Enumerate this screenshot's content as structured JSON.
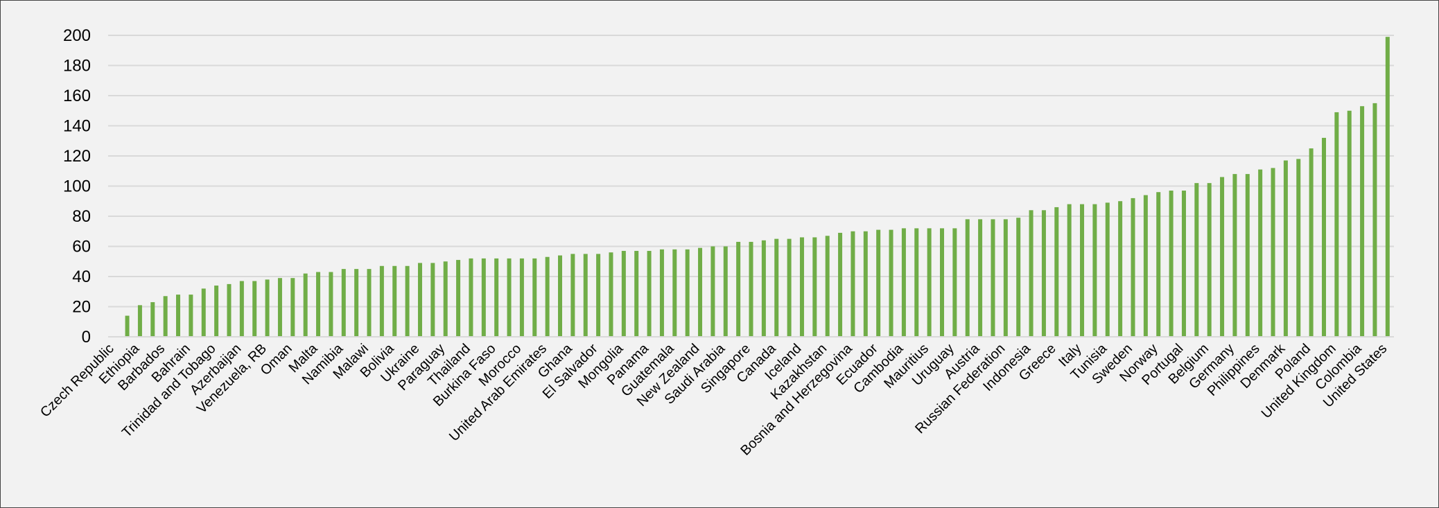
{
  "chart_data": {
    "type": "bar",
    "title": "",
    "xlabel": "",
    "ylabel": "",
    "ylim": [
      0,
      200
    ],
    "yticks": [
      0,
      20,
      40,
      60,
      80,
      100,
      120,
      140,
      160,
      180,
      200
    ],
    "grid": true,
    "bar_color": "#70ad47",
    "gridline_color": "#d9d9d9",
    "categories": [
      "Czech Republic",
      "",
      "Ethiopia",
      "",
      "Barbados",
      "",
      "Bahrain",
      "",
      "Trinidad and Tobago",
      "",
      "Azerbaijan",
      "",
      "Venezuela, RB",
      "",
      "Oman",
      "",
      "Malta",
      "",
      "Namibia",
      "",
      "Malawi",
      "",
      "Bolivia",
      "",
      "Ukraine",
      "",
      "Paraguay",
      "",
      "Thailand",
      "",
      "Burkina Faso",
      "",
      "Morocco",
      "",
      "United Arab Emirates",
      "",
      "Ghana",
      "",
      "El Salvador",
      "",
      "Mongolia",
      "",
      "Panama",
      "",
      "Guatemala",
      "",
      "New Zealand",
      "",
      "Saudi Arabia",
      "",
      "Singapore",
      "",
      "Canada",
      "",
      "Iceland",
      "",
      "Kazakhstan",
      "",
      "Bosnia and Herzegovina",
      "",
      "Ecuador",
      "",
      "Cambodia",
      "",
      "Mauritius",
      "",
      "Uruguay",
      "",
      "Austria",
      "",
      "Russian Federation",
      "",
      "Indonesia",
      "",
      "Greece",
      "",
      "Italy",
      "",
      "Tunisia",
      "",
      "Sweden",
      "",
      "Norway",
      "",
      "Portugal",
      "",
      "Belgium",
      "",
      "Germany",
      "",
      "Philippines",
      "",
      "Denmark",
      "",
      "Poland",
      "",
      "United Kingdom",
      "",
      "Colombia",
      "",
      "United States"
    ],
    "values": [
      0,
      14,
      21,
      23,
      27,
      28,
      28,
      32,
      34,
      35,
      37,
      37,
      38,
      39,
      39,
      42,
      43,
      43,
      45,
      45,
      45,
      47,
      47,
      47,
      49,
      49,
      50,
      51,
      52,
      52,
      52,
      52,
      52,
      52,
      53,
      54,
      55,
      55,
      55,
      56,
      57,
      57,
      57,
      58,
      58,
      58,
      59,
      60,
      60,
      63,
      63,
      64,
      65,
      65,
      66,
      66,
      67,
      69,
      70,
      70,
      71,
      71,
      72,
      72,
      72,
      72,
      72,
      78,
      78,
      78,
      78,
      79,
      84,
      84,
      86,
      88,
      88,
      88,
      89,
      90,
      92,
      94,
      96,
      97,
      97,
      102,
      102,
      106,
      108,
      108,
      111,
      112,
      117,
      118,
      125,
      132,
      149,
      150,
      153,
      155,
      199
    ]
  }
}
